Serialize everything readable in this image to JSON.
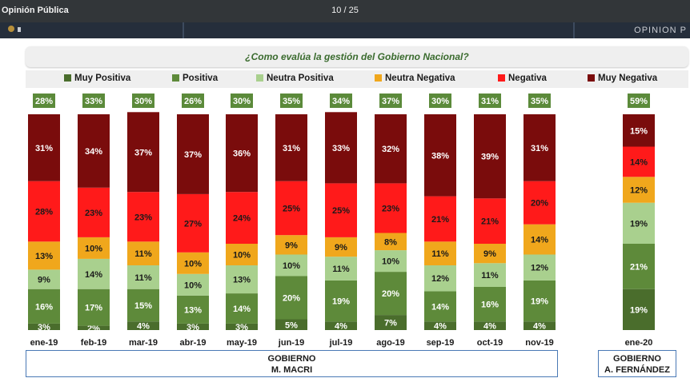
{
  "viewer": {
    "title": "Opinión Pública",
    "page_indicator": "10 / 25"
  },
  "slide_header": {
    "right_text": "OPINION P"
  },
  "colors": {
    "muy_positiva": "#4a6d2c",
    "positiva": "#5e8a3a",
    "neutra_positiva": "#a9d08e",
    "neutra_negativa": "#f0a71c",
    "negativa": "#ff1a1a",
    "muy_negativa": "#7a0c0c",
    "positive_total_badge": "#5b8a3a"
  },
  "groups": [
    {
      "line1": "GOBIERNO",
      "line2": "M. MACRI"
    },
    {
      "line1": "GOBIERNO",
      "line2": "A. FERNÁNDEZ"
    }
  ],
  "chart_data": {
    "type": "bar",
    "stacked": true,
    "title": "¿Como evalúa la gestión del Gobierno Nacional?",
    "categories": [
      "ene-19",
      "feb-19",
      "mar-19",
      "abr-19",
      "may-19",
      "jun-19",
      "jul-19",
      "ago-19",
      "sep-19",
      "oct-19",
      "nov-19",
      "ene-20"
    ],
    "series": [
      {
        "name": "Muy Positiva",
        "values": [
          3,
          2,
          4,
          3,
          3,
          5,
          4,
          7,
          4,
          4,
          4,
          19
        ]
      },
      {
        "name": "Positiva",
        "values": [
          16,
          17,
          15,
          13,
          14,
          20,
          19,
          20,
          14,
          16,
          19,
          21
        ]
      },
      {
        "name": "Neutra Positiva",
        "values": [
          9,
          14,
          11,
          10,
          13,
          10,
          11,
          10,
          12,
          11,
          12,
          19
        ]
      },
      {
        "name": "Neutra Negativa",
        "values": [
          13,
          10,
          11,
          10,
          10,
          9,
          9,
          8,
          11,
          9,
          14,
          12
        ]
      },
      {
        "name": "Negativa",
        "values": [
          28,
          23,
          23,
          27,
          24,
          25,
          25,
          23,
          21,
          21,
          20,
          14
        ]
      },
      {
        "name": "Muy Negativa",
        "values": [
          31,
          34,
          37,
          37,
          36,
          31,
          33,
          32,
          38,
          39,
          31,
          15
        ]
      }
    ],
    "positive_totals": [
      28,
      33,
      30,
      26,
      30,
      35,
      34,
      37,
      30,
      31,
      35,
      59
    ],
    "value_format": "{v}%",
    "legend_position": "top",
    "ylim": [
      0,
      100
    ]
  }
}
